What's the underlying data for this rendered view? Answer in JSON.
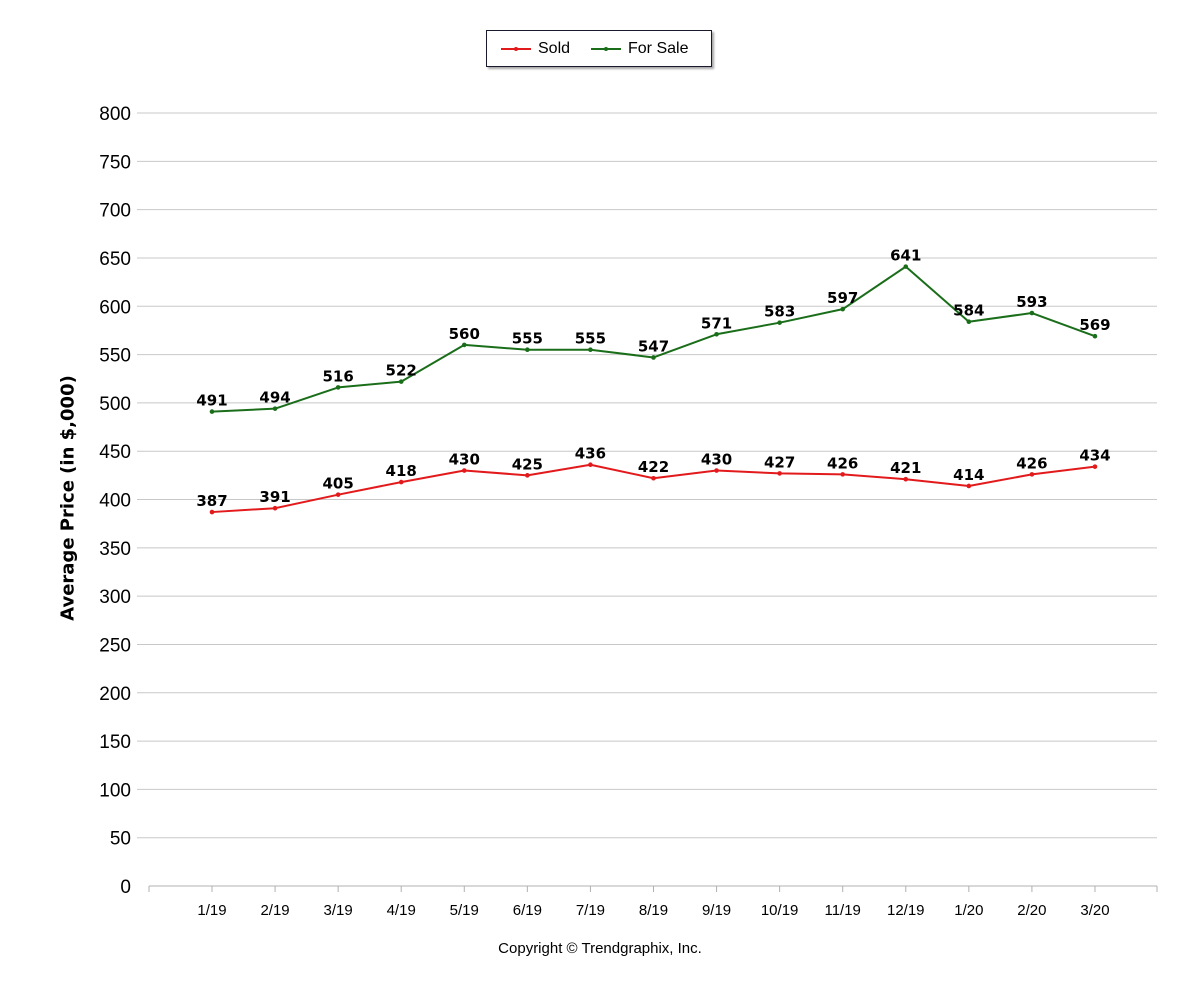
{
  "colors": {
    "sold": "#e31a1c",
    "for_sale": "#1a6e1a",
    "grid": "#c8c8c8",
    "axis": "#b0b0b0"
  },
  "chart_data": {
    "type": "line",
    "categories": [
      "1/19",
      "2/19",
      "3/19",
      "4/19",
      "5/19",
      "6/19",
      "7/19",
      "8/19",
      "9/19",
      "10/19",
      "11/19",
      "12/19",
      "1/20",
      "2/20",
      "3/20"
    ],
    "series": [
      {
        "name": "Sold",
        "color": "#e31a1c",
        "values": [
          387,
          391,
          405,
          418,
          430,
          425,
          436,
          422,
          430,
          427,
          426,
          421,
          414,
          426,
          434
        ]
      },
      {
        "name": "For Sale",
        "color": "#1a6e1a",
        "values": [
          491,
          494,
          516,
          522,
          560,
          555,
          555,
          547,
          571,
          583,
          597,
          641,
          584,
          593,
          569
        ]
      }
    ],
    "ylabel": "Average Price (in $,000)",
    "xlabel": "",
    "ylim": [
      0,
      800
    ],
    "yticks": [
      0,
      50,
      100,
      150,
      200,
      250,
      300,
      350,
      400,
      450,
      500,
      550,
      600,
      650,
      700,
      750,
      800
    ],
    "grid": true,
    "legend_position": "top-center",
    "data_labels": true
  },
  "footer": {
    "copyright": "Copyright © Trendgraphix, Inc."
  }
}
